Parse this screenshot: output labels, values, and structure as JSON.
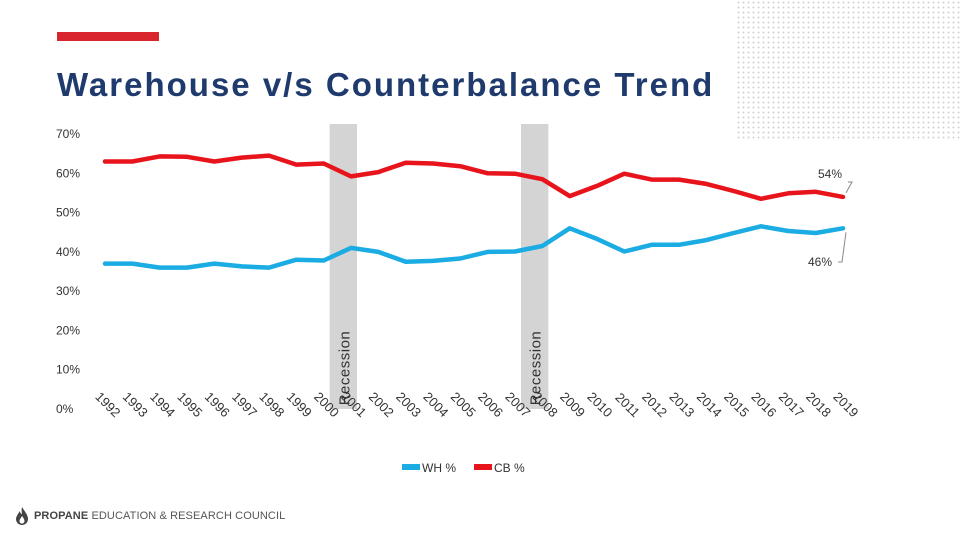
{
  "slide": {
    "title": "Warehouse v/s Counterbalance Trend",
    "accent_color": "#d9262e",
    "footer_brand": "PROPANE",
    "footer_rest": "EDUCATION & RESEARCH COUNCIL"
  },
  "chart_data": {
    "type": "line",
    "title": "Warehouse v/s Counterbalance Trend",
    "xlabel": "",
    "ylabel": "",
    "ylim": [
      0,
      70
    ],
    "yticks": [
      0,
      10,
      20,
      30,
      40,
      50,
      60,
      70
    ],
    "ytick_labels": [
      "0%",
      "10%",
      "20%",
      "30%",
      "40%",
      "50%",
      "60%",
      "70%"
    ],
    "categories": [
      "1992",
      "1993",
      "1994",
      "1995",
      "1996",
      "1997",
      "1998",
      "1999",
      "2000",
      "2001",
      "2002",
      "2003",
      "2004",
      "2005",
      "2006",
      "2007",
      "2008",
      "2009",
      "2010",
      "2011",
      "2012",
      "2013",
      "2014",
      "2015",
      "2016",
      "2017",
      "2018",
      "2019"
    ],
    "series": [
      {
        "name": "WH %",
        "color": "#1aace3",
        "values": [
          37,
          37,
          36,
          36,
          37,
          36.3,
          36,
          38,
          37.8,
          41,
          40,
          37.5,
          37.7,
          38.3,
          40,
          40.1,
          41.5,
          46,
          43.3,
          40.1,
          41.8,
          41.8,
          43,
          44.8,
          46.5,
          45.3,
          44.8,
          46
        ]
      },
      {
        "name": "CB %",
        "color": "#e8141c",
        "values": [
          63,
          63,
          64.3,
          64.2,
          63,
          64,
          64.5,
          62.2,
          62.5,
          59.2,
          60.3,
          62.7,
          62.5,
          61.8,
          60,
          59.9,
          58.5,
          54.2,
          56.8,
          59.9,
          58.4,
          58.4,
          57.3,
          55.5,
          53.5,
          54.9,
          55.3,
          54
        ]
      }
    ],
    "recession_label": "Recession",
    "recession_periods": [
      [
        "2000",
        "2001"
      ],
      [
        "2007",
        "2008"
      ]
    ],
    "annotations": [
      {
        "series": "CB %",
        "category": "2019",
        "text": "54%"
      },
      {
        "series": "WH %",
        "category": "2019",
        "text": "46%"
      }
    ],
    "legend": "bottom-center",
    "grid": false
  }
}
